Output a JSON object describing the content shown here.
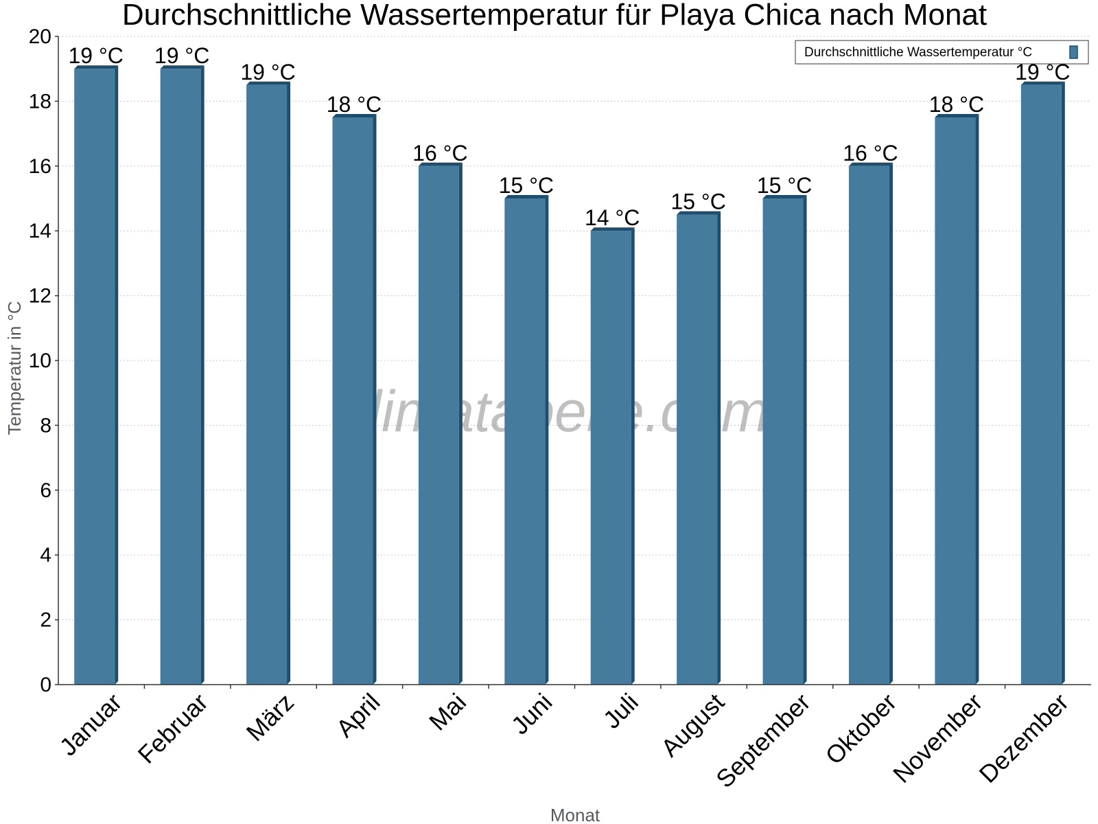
{
  "colors": {
    "bar_front": "#457b9d",
    "bar_side": "#1d4e6e",
    "bar_top": "#1d4e6e",
    "grid": "#c8c8c8",
    "axis": "#333333"
  },
  "watermark": "klimatabelle.com",
  "chart_data": {
    "type": "bar",
    "title": "Durchschnittliche Wassertemperatur für Playa Chica nach Monat",
    "xlabel": "Monat",
    "ylabel": "Temperatur in °C",
    "ylim": [
      0,
      20
    ],
    "yticks": [
      0,
      2,
      4,
      6,
      8,
      10,
      12,
      14,
      16,
      18,
      20
    ],
    "grid": true,
    "legend_position": "top-right",
    "categories": [
      "Januar",
      "Februar",
      "März",
      "April",
      "Mai",
      "Juni",
      "Juli",
      "August",
      "September",
      "Oktober",
      "November",
      "Dezember"
    ],
    "series": [
      {
        "name": "Durchschnittliche Wassertemperatur °C",
        "values": [
          19,
          19,
          18.5,
          17.5,
          16,
          15,
          14,
          14.5,
          15,
          16,
          17.5,
          18.5
        ],
        "labels": [
          "19 °C",
          "19 °C",
          "19 °C",
          "18 °C",
          "16 °C",
          "15 °C",
          "14 °C",
          "15 °C",
          "15 °C",
          "16 °C",
          "18 °C",
          "19 °C"
        ]
      }
    ]
  }
}
